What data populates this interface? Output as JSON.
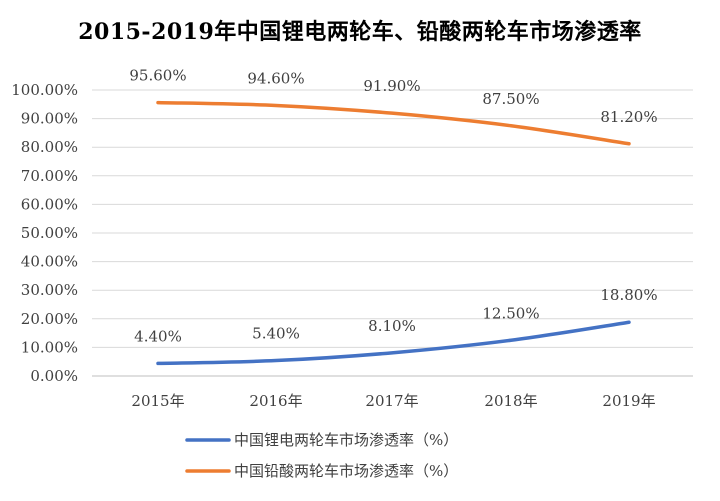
{
  "chart_data": {
    "type": "line",
    "title": "2015-2019年中国锂电两轮车、铅酸两轮车市场渗透率",
    "categories": [
      "2015年",
      "2016年",
      "2017年",
      "2018年",
      "2019年"
    ],
    "series": [
      {
        "name": "中国锂电两轮车市场渗透率（%）",
        "values": [
          4.4,
          5.4,
          8.1,
          12.5,
          18.8
        ],
        "labels": [
          "4.40%",
          "5.40%",
          "8.10%",
          "12.50%",
          "18.80%"
        ],
        "color": "#4472C4"
      },
      {
        "name": "中国铅酸两轮车市场渗透率（%）",
        "values": [
          95.6,
          94.6,
          91.9,
          87.5,
          81.2
        ],
        "labels": [
          "95.60%",
          "94.60%",
          "91.90%",
          "87.50%",
          "81.20%"
        ],
        "color": "#ED7D31"
      }
    ],
    "y_ticks": [
      "0.00%",
      "10.00%",
      "20.00%",
      "30.00%",
      "40.00%",
      "50.00%",
      "60.00%",
      "70.00%",
      "80.00%",
      "90.00%",
      "100.00%"
    ],
    "ylim": [
      0,
      100
    ],
    "xlabel": "",
    "ylabel": "",
    "grid": true,
    "legend_position": "bottom"
  }
}
